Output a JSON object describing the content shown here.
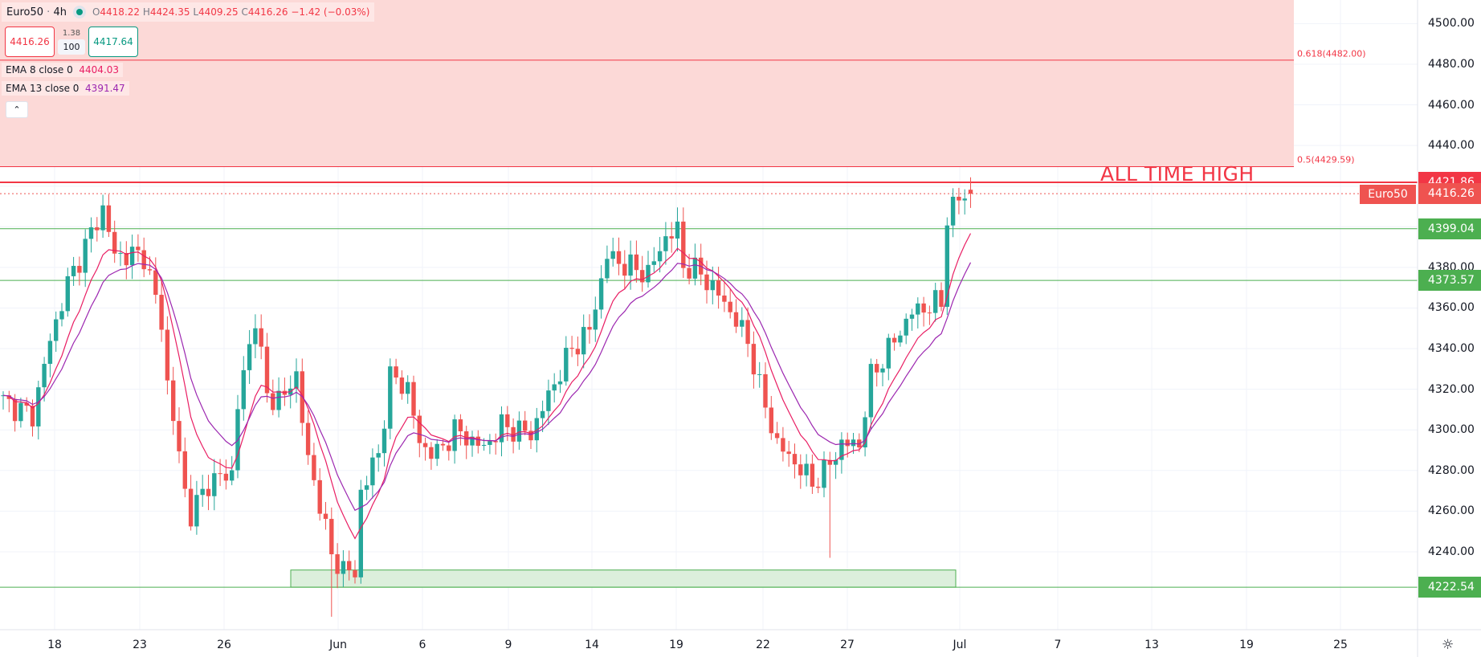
{
  "header": {
    "symbol": "Euro50",
    "separator": "·",
    "interval": "4h",
    "ohlc": {
      "o_label": "O",
      "o": "4418.22",
      "h_label": "H",
      "h": "4424.35",
      "l_label": "L",
      "l": "4409.25",
      "c_label": "C",
      "c": "4416.26",
      "change": "−1.42 (−0.03%)"
    },
    "market_status_color": "#089981"
  },
  "trade": {
    "sell": "4416.26",
    "spread": "1.38",
    "quantity": "100",
    "buy": "4417.64"
  },
  "indicators": [
    {
      "label": "EMA 8 close 0",
      "value": "4404.03",
      "color": "#e91e63"
    },
    {
      "label": "EMA 13 close 0",
      "value": "4391.47",
      "color": "#9c27b0"
    }
  ],
  "collapse_icon": "chevron-up-icon",
  "collapse_glyph": "⌃",
  "annotations": {
    "ath_text": "ALL TIME HIGH",
    "fib_618": "0.618(4482.00)",
    "fib_5": "0.5(4429.59)",
    "symbol_tag": "Euro50"
  },
  "settings_icon": "gear-icon",
  "chart_data": {
    "type": "candlestick",
    "symbol": "Euro50",
    "interval": "4h",
    "colors": {
      "up": "#26a69a",
      "down": "#ef5350",
      "ema8": "#e91e63",
      "ema13": "#9c27b0",
      "support": "#4caf50",
      "resistance": "#f23645",
      "fib_zone": "#fcd9d7",
      "zone": "#dcefdc"
    },
    "y_axis": {
      "min": 4200,
      "max": 4510,
      "ticks": [
        "4500.00",
        "4480.00",
        "4460.00",
        "4440.00",
        "4420.00",
        "4400.00",
        "4380.00",
        "4360.00",
        "4340.00",
        "4320.00",
        "4300.00",
        "4280.00",
        "4260.00",
        "4240.00"
      ]
    },
    "x_axis": {
      "ticks": [
        "18",
        "23",
        "26",
        "Jun",
        "6",
        "9",
        "14",
        "19",
        "22",
        "27",
        "Jul",
        "7",
        "13",
        "19",
        "25"
      ]
    },
    "close_waypoints_by_bar": [
      [
        0,
        4314
      ],
      [
        5,
        4307
      ],
      [
        8,
        4344
      ],
      [
        11,
        4372
      ],
      [
        17,
        4409
      ],
      [
        19,
        4386
      ],
      [
        24,
        4386
      ],
      [
        27,
        4353
      ],
      [
        28,
        4323
      ],
      [
        31,
        4270
      ],
      [
        32,
        4258
      ],
      [
        35,
        4274
      ],
      [
        39,
        4279
      ],
      [
        40,
        4312
      ],
      [
        43,
        4356
      ],
      [
        45,
        4316
      ],
      [
        48,
        4316
      ],
      [
        50,
        4328
      ],
      [
        52,
        4284
      ],
      [
        54,
        4265
      ],
      [
        56,
        4237
      ],
      [
        60,
        4228
      ],
      [
        61,
        4270
      ],
      [
        64,
        4288
      ],
      [
        66,
        4326
      ],
      [
        69,
        4321
      ],
      [
        71,
        4293
      ],
      [
        74,
        4288
      ],
      [
        77,
        4300
      ],
      [
        82,
        4291
      ],
      [
        85,
        4302
      ],
      [
        90,
        4298
      ],
      [
        94,
        4323
      ],
      [
        97,
        4340
      ],
      [
        100,
        4349
      ],
      [
        103,
        4386
      ],
      [
        106,
        4381
      ],
      [
        110,
        4377
      ],
      [
        113,
        4395
      ],
      [
        115,
        4398
      ],
      [
        116,
        4381
      ],
      [
        119,
        4377
      ],
      [
        123,
        4363
      ],
      [
        127,
        4344
      ],
      [
        129,
        4321
      ],
      [
        132,
        4293
      ],
      [
        135,
        4284
      ],
      [
        138,
        4274
      ],
      [
        140,
        4279
      ],
      [
        143,
        4293
      ],
      [
        146,
        4293
      ],
      [
        148,
        4326
      ],
      [
        152,
        4344
      ],
      [
        155,
        4358
      ],
      [
        160,
        4363
      ],
      [
        161,
        4405
      ],
      [
        163,
        4414
      ],
      [
        165,
        4416.26
      ]
    ],
    "notable_lows_by_bar": [
      [
        56,
        4208
      ],
      [
        141,
        4237
      ]
    ],
    "levels": [
      {
        "price": 4421.86,
        "label": "4421.86",
        "kind": "all-time-high",
        "color": "#f23645"
      },
      {
        "price": 4416.26,
        "label": "4416.26",
        "kind": "last-price",
        "color": "#ef5350"
      },
      {
        "price": 4399.04,
        "label": "4399.04",
        "kind": "horizontal",
        "color": "#4caf50"
      },
      {
        "price": 4373.57,
        "label": "4373.57",
        "kind": "horizontal",
        "color": "#4caf50"
      },
      {
        "price": 4222.54,
        "label": "4222.54",
        "kind": "horizontal",
        "color": "#4caf50"
      }
    ],
    "fib_zone": {
      "from": 4429.59,
      "to": 4510,
      "line_618": 4482.0
    },
    "support_zone": {
      "from": 4222.54,
      "to": 4231
    }
  }
}
